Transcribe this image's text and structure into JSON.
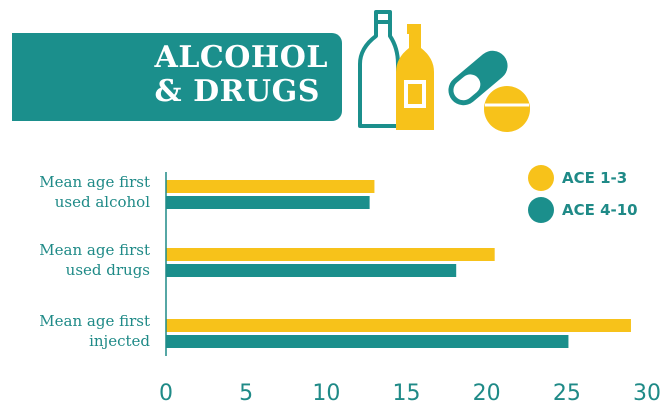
{
  "banner": {
    "line1": "ALCOHOL",
    "line2": "& DRUGS"
  },
  "icons": [
    "bottle-icon",
    "whiskey-bottle-icon",
    "capsule-icon",
    "pill-icon"
  ],
  "colors": {
    "teal": "#1b8f8c",
    "yellow": "#f7c21a",
    "text": "#1f8a87"
  },
  "chart_data": {
    "type": "bar",
    "orientation": "horizontal",
    "categories": [
      [
        "Mean age first",
        "used alcohol"
      ],
      [
        "Mean age first",
        "used drugs"
      ],
      [
        "Mean age first",
        "injected"
      ]
    ],
    "series": [
      {
        "name": "ACE 1-3",
        "color": "#f7c21a",
        "values": [
          13.0,
          20.5,
          29.0
        ]
      },
      {
        "name": "ACE 4-10",
        "color": "#1b8f8c",
        "values": [
          12.7,
          18.1,
          25.1
        ]
      }
    ],
    "xlim": [
      0,
      30
    ],
    "xticks": [
      "0",
      "5",
      "10",
      "15",
      "20",
      "25",
      "30"
    ],
    "grid": false,
    "legend_position": "top-right"
  }
}
